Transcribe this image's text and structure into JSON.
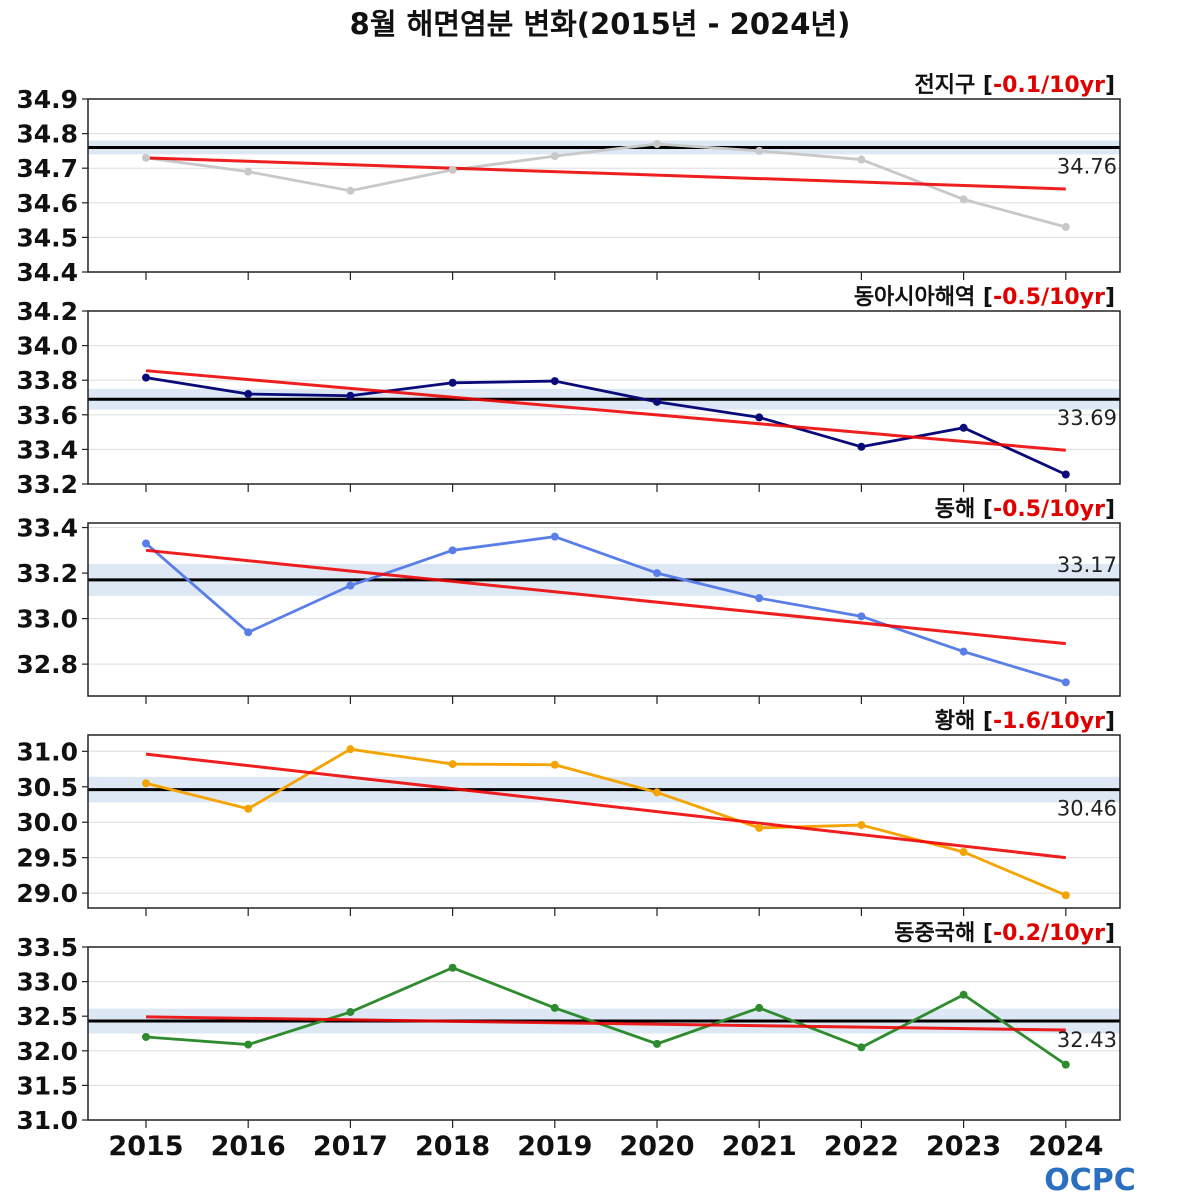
{
  "chart_data": {
    "type": "line",
    "title": "8월 해면염분 변화(2015년 - 2024년)",
    "x": [
      "2015",
      "2016",
      "2017",
      "2018",
      "2019",
      "2020",
      "2021",
      "2022",
      "2023",
      "2024"
    ],
    "logo": "OCPC",
    "panels": [
      {
        "name": "전지구",
        "trend_label": "-0.1/10yr",
        "color": "#c8c8c8",
        "ylim": [
          34.4,
          34.9
        ],
        "yticks": [
          "34.9",
          "34.8",
          "34.7",
          "34.6",
          "34.5",
          "34.4"
        ],
        "values": [
          34.73,
          34.69,
          34.635,
          34.695,
          34.735,
          34.77,
          34.75,
          34.725,
          34.61,
          34.53
        ],
        "climatology": 34.76,
        "climatology_label": "34.76",
        "clim_band": [
          34.74,
          34.78
        ],
        "trend_line": [
          34.73,
          34.64
        ],
        "clim_label_position": "below"
      },
      {
        "name": "동아시아해역",
        "trend_label": "-0.5/10yr",
        "color": "#0a0a78",
        "ylim": [
          33.2,
          34.2
        ],
        "yticks": [
          "34.2",
          "34.0",
          "33.8",
          "33.6",
          "33.4",
          "33.2"
        ],
        "values": [
          33.815,
          33.72,
          33.71,
          33.785,
          33.795,
          33.675,
          33.585,
          33.415,
          33.525,
          33.255
        ],
        "climatology": 33.69,
        "climatology_label": "33.69",
        "clim_band": [
          33.63,
          33.75
        ],
        "trend_line": [
          33.855,
          33.395
        ],
        "clim_label_position": "below"
      },
      {
        "name": "동해",
        "trend_label": "-0.5/10yr",
        "color": "#5a7ee8",
        "ylim": [
          32.66,
          33.42
        ],
        "yticks": [
          "33.4",
          "33.2",
          "33.0",
          "32.8"
        ],
        "values": [
          33.33,
          32.94,
          33.145,
          33.3,
          33.36,
          33.2,
          33.09,
          33.01,
          32.855,
          32.72
        ],
        "climatology": 33.17,
        "climatology_label": "33.17",
        "clim_band": [
          33.1,
          33.24
        ],
        "trend_line": [
          33.3,
          32.89
        ],
        "clim_label_position": "above"
      },
      {
        "name": "황해",
        "trend_label": "-1.6/10yr",
        "color": "#f5a300",
        "ylim": [
          28.79,
          31.23
        ],
        "yticks": [
          "31.0",
          "30.5",
          "30.0",
          "29.5",
          "29.0"
        ],
        "values": [
          30.55,
          30.19,
          31.03,
          30.82,
          30.81,
          30.42,
          29.92,
          29.96,
          29.58,
          28.97
        ],
        "climatology": 30.46,
        "climatology_label": "30.46",
        "clim_band": [
          30.28,
          30.64
        ],
        "trend_line": [
          30.96,
          29.5
        ],
        "clim_label_position": "below"
      },
      {
        "name": "동중국해",
        "trend_label": "-0.2/10yr",
        "color": "#2e8b2e",
        "ylim": [
          31.0,
          33.5
        ],
        "yticks": [
          "33.5",
          "33.0",
          "32.5",
          "32.0",
          "31.5",
          "31.0"
        ],
        "values": [
          32.2,
          32.09,
          32.56,
          33.2,
          32.62,
          32.1,
          32.62,
          32.05,
          32.81,
          31.8
        ],
        "climatology": 32.43,
        "climatology_label": "32.43",
        "clim_band": [
          32.25,
          32.61
        ],
        "trend_line": [
          32.49,
          32.3
        ],
        "clim_label_position": "below"
      }
    ]
  }
}
